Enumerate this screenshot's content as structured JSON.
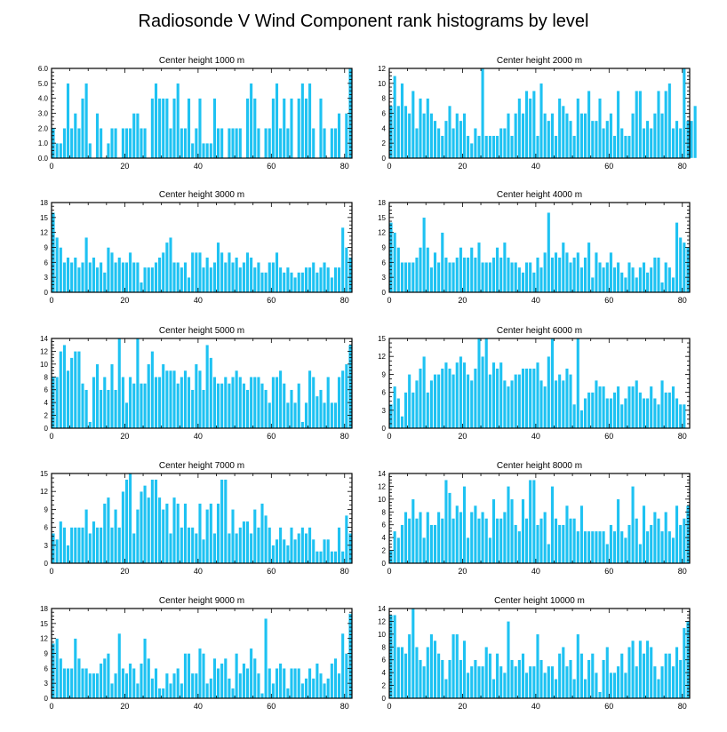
{
  "title": "Radiosonde V Wind Component rank histograms by level",
  "colors": {
    "bar": "#1EC2F2",
    "bar_edge": "#ffffff",
    "axis": "#000000"
  },
  "chart_data": [
    {
      "type": "bar",
      "title": "Center height 1000 m",
      "xlim": [
        0,
        82
      ],
      "ylim": [
        0,
        6
      ],
      "xticks": [
        "0",
        "20",
        "40",
        "60",
        "80"
      ],
      "yticks": [
        "0.0",
        "1.0",
        "2.0",
        "3.0",
        "4.0",
        "5.0",
        "6.0"
      ],
      "values": [
        2,
        1,
        1,
        2,
        5,
        2,
        3,
        2,
        4,
        5,
        1,
        0,
        3,
        2,
        0,
        1,
        2,
        2,
        0,
        2,
        2,
        2,
        3,
        3,
        2,
        2,
        0,
        4,
        5,
        4,
        4,
        4,
        2,
        4,
        5,
        2,
        2,
        4,
        1,
        2,
        4,
        1,
        1,
        1,
        4,
        2,
        2,
        0,
        2,
        2,
        2,
        2,
        0,
        4,
        5,
        4,
        2,
        0,
        2,
        2,
        4,
        5,
        2,
        4,
        2,
        4,
        0,
        4,
        5,
        4,
        5,
        2,
        0,
        4,
        2,
        0,
        2,
        2,
        3,
        0,
        3,
        6
      ]
    },
    {
      "type": "bar",
      "title": "Center height 2000 m",
      "xlim": [
        0,
        82
      ],
      "ylim": [
        0,
        12
      ],
      "xticks": [
        "0",
        "20",
        "40",
        "60",
        "80"
      ],
      "yticks": [
        "0",
        "2",
        "4",
        "6",
        "8",
        "10",
        "12"
      ],
      "values": [
        7,
        11,
        7,
        10,
        7,
        6,
        9,
        4,
        8,
        6,
        8,
        6,
        5,
        4,
        3,
        5,
        7,
        4,
        6,
        5,
        6,
        3,
        2,
        4,
        3,
        12,
        3,
        3,
        3,
        3,
        4,
        4,
        6,
        3,
        6,
        8,
        6,
        9,
        8,
        9,
        3,
        10,
        6,
        5,
        6,
        3,
        8,
        7,
        6,
        5,
        3,
        8,
        6,
        6,
        9,
        5,
        5,
        8,
        4,
        5,
        6,
        3,
        9,
        4,
        3,
        3,
        6,
        9,
        9,
        4,
        5,
        4,
        6,
        9,
        6,
        9,
        10,
        4,
        5,
        4,
        12,
        5,
        5,
        7
      ]
    },
    {
      "type": "bar",
      "title": "Center height 3000 m",
      "xlim": [
        0,
        82
      ],
      "ylim": [
        0,
        18
      ],
      "xticks": [
        "0",
        "20",
        "40",
        "60",
        "80"
      ],
      "yticks": [
        "0",
        "3",
        "6",
        "9",
        "12",
        "15",
        "18"
      ],
      "values": [
        16,
        11,
        9,
        6,
        7,
        6,
        7,
        5,
        6,
        11,
        6,
        7,
        5,
        6,
        4,
        9,
        8,
        6,
        7,
        6,
        6,
        8,
        6,
        6,
        2,
        5,
        5,
        5,
        6,
        7,
        8,
        10,
        11,
        6,
        6,
        5,
        6,
        3,
        8,
        8,
        8,
        5,
        7,
        5,
        6,
        10,
        8,
        6,
        8,
        6,
        7,
        5,
        6,
        8,
        7,
        5,
        6,
        4,
        4,
        6,
        6,
        8,
        5,
        4,
        5,
        4,
        3,
        4,
        4,
        5,
        5,
        6,
        4,
        5,
        6,
        5,
        3,
        5,
        5,
        13,
        9,
        7
      ]
    },
    {
      "type": "bar",
      "title": "Center height 4000 m",
      "xlim": [
        0,
        82
      ],
      "ylim": [
        0,
        18
      ],
      "xticks": [
        "0",
        "20",
        "40",
        "60",
        "80"
      ],
      "yticks": [
        "0",
        "3",
        "6",
        "9",
        "12",
        "15",
        "18"
      ],
      "values": [
        14,
        12,
        9,
        6,
        6,
        6,
        6,
        7,
        9,
        15,
        9,
        5,
        8,
        6,
        12,
        7,
        6,
        6,
        7,
        9,
        7,
        7,
        9,
        7,
        10,
        6,
        6,
        6,
        7,
        9,
        7,
        10,
        7,
        6,
        6,
        5,
        4,
        6,
        6,
        4,
        7,
        5,
        8,
        16,
        7,
        8,
        7,
        10,
        8,
        6,
        7,
        8,
        5,
        7,
        10,
        3,
        8,
        6,
        5,
        6,
        8,
        5,
        6,
        4,
        3,
        6,
        5,
        3,
        5,
        6,
        4,
        5,
        7,
        7,
        2,
        6,
        5,
        3,
        14,
        11,
        10,
        9
      ]
    },
    {
      "type": "bar",
      "title": "Center height 5000 m",
      "xlim": [
        0,
        82
      ],
      "ylim": [
        0,
        14
      ],
      "xticks": [
        "0",
        "20",
        "40",
        "60",
        "80"
      ],
      "yticks": [
        "0",
        "2",
        "4",
        "6",
        "8",
        "10",
        "12",
        "14"
      ],
      "values": [
        8,
        8,
        12,
        13,
        9,
        11,
        12,
        12,
        7,
        6,
        1,
        8,
        10,
        6,
        8,
        6,
        10,
        6,
        14,
        8,
        4,
        8,
        7,
        14,
        7,
        7,
        10,
        12,
        8,
        8,
        10,
        9,
        9,
        9,
        7,
        8,
        9,
        8,
        6,
        10,
        9,
        6,
        13,
        11,
        8,
        7,
        7,
        8,
        7,
        8,
        9,
        8,
        7,
        6,
        8,
        8,
        8,
        7,
        6,
        4,
        8,
        8,
        9,
        7,
        4,
        6,
        4,
        7,
        1,
        4,
        9,
        8,
        5,
        6,
        4,
        8,
        4,
        4,
        8,
        9,
        10,
        13
      ]
    },
    {
      "type": "bar",
      "title": "Center height 6000 m",
      "xlim": [
        0,
        82
      ],
      "ylim": [
        0,
        15
      ],
      "xticks": [
        "0",
        "20",
        "40",
        "60",
        "80"
      ],
      "yticks": [
        "0",
        "3",
        "6",
        "9",
        "12",
        "15"
      ],
      "values": [
        4,
        7,
        5,
        2,
        6,
        9,
        6,
        8,
        10,
        12,
        6,
        8,
        9,
        9,
        10,
        11,
        10,
        9,
        11,
        12,
        11,
        9,
        8,
        10,
        15,
        12,
        15,
        9,
        11,
        10,
        11,
        8,
        7,
        8,
        9,
        9,
        10,
        10,
        10,
        10,
        11,
        8,
        7,
        12,
        15,
        8,
        9,
        8,
        10,
        9,
        4,
        15,
        3,
        5,
        6,
        6,
        8,
        7,
        7,
        5,
        5,
        6,
        7,
        4,
        5,
        7,
        7,
        8,
        6,
        5,
        5,
        7,
        5,
        4,
        8,
        6,
        6,
        7,
        5,
        4,
        4,
        0
      ]
    },
    {
      "type": "bar",
      "title": "Center height 7000 m",
      "xlim": [
        0,
        82
      ],
      "ylim": [
        0,
        15
      ],
      "xticks": [
        "0",
        "20",
        "40",
        "60",
        "80"
      ],
      "yticks": [
        "0",
        "3",
        "6",
        "9",
        "12",
        "15"
      ],
      "values": [
        5,
        4,
        7,
        6,
        3,
        6,
        6,
        6,
        6,
        9,
        5,
        7,
        6,
        6,
        10,
        11,
        6,
        9,
        6,
        12,
        14,
        15,
        5,
        9,
        12,
        13,
        11,
        14,
        14,
        11,
        9,
        10,
        5,
        11,
        10,
        6,
        10,
        6,
        6,
        5,
        10,
        4,
        9,
        10,
        5,
        10,
        14,
        14,
        5,
        9,
        5,
        6,
        7,
        7,
        5,
        9,
        6,
        10,
        8,
        6,
        3,
        4,
        6,
        4,
        3,
        6,
        4,
        5,
        6,
        5,
        6,
        4,
        2,
        2,
        4,
        4,
        2,
        2,
        6,
        2,
        8,
        5
      ]
    },
    {
      "type": "bar",
      "title": "Center height 8000 m",
      "xlim": [
        0,
        82
      ],
      "ylim": [
        0,
        14
      ],
      "xticks": [
        "0",
        "20",
        "40",
        "60",
        "80"
      ],
      "yticks": [
        "0",
        "2",
        "4",
        "6",
        "8",
        "10",
        "12",
        "14"
      ],
      "values": [
        2,
        5,
        4,
        6,
        8,
        7,
        10,
        7,
        8,
        4,
        8,
        6,
        6,
        8,
        7,
        13,
        11,
        7,
        9,
        8,
        12,
        4,
        8,
        9,
        7,
        8,
        7,
        4,
        10,
        7,
        7,
        8,
        12,
        10,
        6,
        5,
        10,
        7,
        13,
        13,
        6,
        7,
        8,
        3,
        12,
        7,
        6,
        6,
        9,
        7,
        7,
        5,
        9,
        5,
        5,
        5,
        5,
        5,
        5,
        3,
        6,
        5,
        10,
        5,
        4,
        6,
        12,
        7,
        3,
        9,
        5,
        6,
        8,
        7,
        5,
        8,
        5,
        4,
        9,
        6,
        7,
        9
      ]
    },
    {
      "type": "bar",
      "title": "Center height 9000 m",
      "xlim": [
        0,
        82
      ],
      "ylim": [
        0,
        18
      ],
      "xticks": [
        "0",
        "20",
        "40",
        "60",
        "80"
      ],
      "yticks": [
        "0",
        "3",
        "6",
        "9",
        "12",
        "15",
        "18"
      ],
      "values": [
        11,
        12,
        8,
        6,
        6,
        6,
        12,
        8,
        6,
        6,
        5,
        5,
        5,
        7,
        8,
        9,
        3,
        5,
        13,
        6,
        5,
        7,
        6,
        3,
        7,
        12,
        8,
        4,
        6,
        2,
        2,
        5,
        3,
        5,
        6,
        3,
        9,
        9,
        5,
        5,
        10,
        9,
        3,
        4,
        8,
        6,
        7,
        8,
        4,
        2,
        9,
        5,
        7,
        6,
        10,
        8,
        5,
        1,
        16,
        6,
        3,
        6,
        7,
        6,
        2,
        6,
        6,
        6,
        3,
        4,
        6,
        4,
        7,
        5,
        3,
        4,
        7,
        8,
        5,
        13,
        9,
        17
      ]
    },
    {
      "type": "bar",
      "title": "Center height 10000 m",
      "xlim": [
        0,
        82
      ],
      "ylim": [
        0,
        14
      ],
      "xticks": [
        "0",
        "20",
        "40",
        "60",
        "80"
      ],
      "yticks": [
        "0",
        "2",
        "4",
        "6",
        "8",
        "10",
        "12",
        "14"
      ],
      "values": [
        13,
        13,
        8,
        8,
        7,
        10,
        14,
        8,
        6,
        5,
        8,
        10,
        9,
        7,
        6,
        3,
        6,
        10,
        10,
        6,
        9,
        4,
        5,
        6,
        5,
        5,
        8,
        7,
        3,
        7,
        5,
        4,
        12,
        6,
        5,
        6,
        7,
        4,
        5,
        5,
        10,
        6,
        4,
        5,
        5,
        3,
        7,
        8,
        5,
        6,
        3,
        10,
        7,
        3,
        6,
        7,
        4,
        1,
        6,
        8,
        4,
        4,
        5,
        7,
        4,
        8,
        9,
        5,
        9,
        7,
        9,
        8,
        5,
        3,
        5,
        7,
        7,
        5,
        8,
        6,
        11,
        12
      ]
    }
  ]
}
